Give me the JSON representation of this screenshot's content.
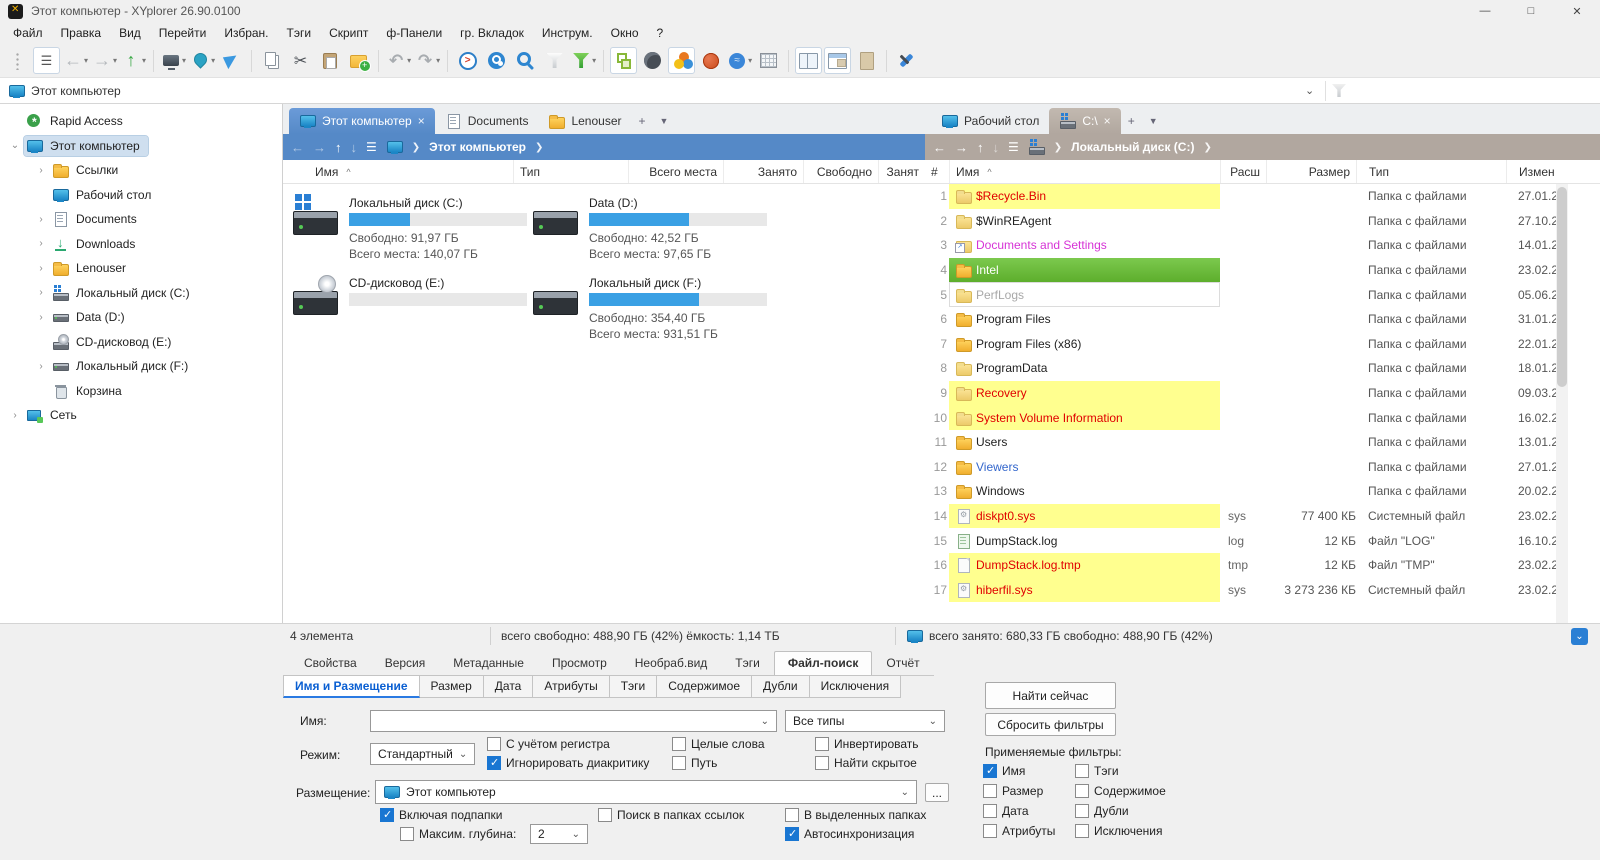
{
  "window": {
    "title": "Этот компьютер - XYplorer 26.90.0100"
  },
  "menubar": [
    "Файл",
    "Правка",
    "Вид",
    "Перейти",
    "Избран.",
    "Тэги",
    "Скрипт",
    "ф-Панели",
    "гр. Вкладок",
    "Инструм.",
    "Окно",
    "?"
  ],
  "toolbar": [
    {
      "name": "toolbar-grip",
      "icon": "grip"
    },
    {
      "name": "menu-toggle-button",
      "icon": "burger",
      "cls": "pressed"
    },
    {
      "name": "back-button",
      "icon": "back",
      "caret": "▾"
    },
    {
      "name": "forward-button",
      "icon": "fwd",
      "caret": "▾"
    },
    {
      "name": "up-button",
      "icon": "up",
      "caret": "▾"
    },
    {
      "cls": "sep"
    },
    {
      "name": "show-desktop-button",
      "icon": "monitor",
      "caret": "▾"
    },
    {
      "name": "location-pin-button",
      "icon": "pin",
      "caret": "▾"
    },
    {
      "name": "goto-button",
      "icon": "nav"
    },
    {
      "cls": "sep"
    },
    {
      "name": "copy-button",
      "icon": "copy"
    },
    {
      "name": "cut-button",
      "icon": "cut"
    },
    {
      "name": "paste-button",
      "icon": "paste"
    },
    {
      "name": "new-folder-button",
      "icon": "newfolder"
    },
    {
      "cls": "sep"
    },
    {
      "name": "undo-button",
      "icon": "undo",
      "caret": "▾"
    },
    {
      "name": "redo-button",
      "icon": "redo",
      "caret": "▾"
    },
    {
      "cls": "sep"
    },
    {
      "name": "live-filter-button",
      "icon": "livefilter"
    },
    {
      "name": "quick-search-button",
      "icon": "searchcircle"
    },
    {
      "name": "search-button",
      "icon": "magnifier"
    },
    {
      "name": "filter-off-button",
      "icon": "funnelgray"
    },
    {
      "name": "filter-on-button",
      "icon": "funnelgreen",
      "caret": "▾"
    },
    {
      "cls": "sep"
    },
    {
      "name": "tree-toggle-button",
      "icon": "treetoggle",
      "cls": "pressed"
    },
    {
      "name": "dark-mode-button",
      "icon": "moon"
    },
    {
      "name": "color-filters-button",
      "icon": "colors",
      "cls": "pressed"
    },
    {
      "name": "tags-button",
      "icon": "ball"
    },
    {
      "name": "scripts-button",
      "icon": "badge",
      "caret": "▾"
    },
    {
      "name": "report-button",
      "icon": "reportgrid"
    },
    {
      "cls": "sep"
    },
    {
      "name": "dual-pane-button",
      "icon": "dualpane",
      "cls": "pressed"
    },
    {
      "name": "panel-layout-button",
      "icon": "layoutpane",
      "cls": "pressed"
    },
    {
      "name": "preview-button",
      "icon": "paper"
    },
    {
      "cls": "sep"
    },
    {
      "name": "tools-button",
      "icon": "wrench"
    }
  ],
  "addressbar": {
    "value": "Этот компьютер"
  },
  "tree": [
    {
      "name": "tree-item-rapid-access",
      "label": "Rapid Access",
      "icon": "rapid",
      "depth": 0,
      "arrow": ""
    },
    {
      "name": "tree-item-this-computer",
      "label": "Этот компьютер",
      "icon": "computer",
      "depth": 0,
      "arrow": "⌄",
      "cls": "selected"
    },
    {
      "name": "tree-item-links",
      "label": "Ссылки",
      "icon": "folder",
      "depth": 1,
      "arrow": "›"
    },
    {
      "name": "tree-item-desktop",
      "label": "Рабочий стол",
      "icon": "desktop",
      "depth": 1,
      "arrow": ""
    },
    {
      "name": "tree-item-documents",
      "label": "Documents",
      "icon": "documents",
      "depth": 1,
      "arrow": "›"
    },
    {
      "name": "tree-item-downloads",
      "label": "Downloads",
      "icon": "downloads",
      "depth": 1,
      "arrow": "›"
    },
    {
      "name": "tree-item-lenouser",
      "label": "Lenouser",
      "icon": "folder",
      "depth": 1,
      "arrow": "›"
    },
    {
      "name": "tree-item-drive-c",
      "label": "Локальный диск (C:)",
      "icon": "drivewin",
      "depth": 1,
      "arrow": "›"
    },
    {
      "name": "tree-item-drive-d",
      "label": "Data (D:)",
      "icon": "drive",
      "depth": 1,
      "arrow": "›"
    },
    {
      "name": "tree-item-cd-e",
      "label": "CD-дисковод (E:)",
      "icon": "cd",
      "depth": 1,
      "arrow": ""
    },
    {
      "name": "tree-item-drive-f",
      "label": "Локальный диск (F:)",
      "icon": "drive",
      "depth": 1,
      "arrow": "›"
    },
    {
      "name": "tree-item-recycle",
      "label": "Корзина",
      "icon": "recycle",
      "depth": 1,
      "arrow": ""
    },
    {
      "name": "tree-item-network",
      "label": "Сеть",
      "icon": "network",
      "depth": 0,
      "arrow": "›"
    }
  ],
  "pane1": {
    "tabs": [
      {
        "name": "tab-this-computer",
        "label": "Этот компьютер",
        "icon": "computer",
        "cls": "active1",
        "close": "×"
      },
      {
        "name": "tab-documents",
        "label": "Documents",
        "icon": "documents"
      },
      {
        "name": "tab-lenouser",
        "label": "Lenouser",
        "icon": "folder"
      }
    ],
    "newtab": "+",
    "tabmenu": "▼",
    "crumb": {
      "path": "Этот компьютер"
    },
    "columns": [
      "Имя",
      "Тип",
      "Всего места",
      "Занято",
      "Свободно",
      "Занят"
    ],
    "sort": "^",
    "drives": [
      {
        "name": "Локальный диск (C:)",
        "icon": "hddwin",
        "pct": 34,
        "free": "Свободно: 91,97 ГБ",
        "total": "Всего места: 140,07 ГБ"
      },
      {
        "name": "Data (D:)",
        "icon": "hdd",
        "pct": 56,
        "free": "Свободно: 42,52 ГБ",
        "total": "Всего места: 97,65 ГБ"
      },
      {
        "name": "CD-дисковод (E:)",
        "icon": "cdrom",
        "pct": 0,
        "free": "",
        "total": ""
      },
      {
        "name": "Локальный диск (F:)",
        "icon": "hdd",
        "pct": 62,
        "free": "Свободно: 354,40 ГБ",
        "total": "Всего места: 931,51 ГБ"
      }
    ]
  },
  "pane2": {
    "tabs": [
      {
        "name": "tab-desktop",
        "label": "Рабочий стол",
        "icon": "desktop"
      },
      {
        "name": "tab-drive-c",
        "label": "C:\\",
        "icon": "drivewin",
        "cls": "active2",
        "close": "×"
      }
    ],
    "newtab": "+",
    "tabmenu": "▼",
    "crumb": {
      "path": "Локальный диск (C:)"
    },
    "columns": [
      "#",
      "Имя",
      "Расш",
      "Размер",
      "Тип",
      "Измен"
    ],
    "sort": "^",
    "rows": [
      {
        "n": "1",
        "name": "$Recycle.Bin",
        "icon": "folderpale",
        "cls": "hl-yellow",
        "ext": "",
        "size": "",
        "type": "Папка с файлами",
        "date": "27.01.2"
      },
      {
        "n": "2",
        "name": "$WinREAgent",
        "icon": "folderpale",
        "ext": "",
        "size": "",
        "type": "Папка с файлами",
        "date": "27.10.2"
      },
      {
        "n": "3",
        "name": "Documents and Settings",
        "icon": "folderlink",
        "cls": "txt-magenta",
        "ext": "",
        "size": "",
        "type": "Папка с файлами",
        "date": "14.01.2"
      },
      {
        "n": "4",
        "name": "Intel",
        "icon": "folder",
        "cls": "sel-green",
        "ext": "",
        "size": "",
        "type": "Папка с файлами",
        "date": "23.02.2"
      },
      {
        "n": "5",
        "name": "PerfLogs",
        "icon": "folderpale",
        "cls": "ghost",
        "ext": "",
        "size": "",
        "type": "Папка с файлами",
        "date": "05.06.2"
      },
      {
        "n": "6",
        "name": "Program Files",
        "icon": "folder",
        "ext": "",
        "size": "",
        "type": "Папка с файлами",
        "date": "31.01.2"
      },
      {
        "n": "7",
        "name": "Program Files (x86)",
        "icon": "folder",
        "ext": "",
        "size": "",
        "type": "Папка с файлами",
        "date": "22.01.2"
      },
      {
        "n": "8",
        "name": "ProgramData",
        "icon": "folderpale",
        "ext": "",
        "size": "",
        "type": "Папка с файлами",
        "date": "18.01.2"
      },
      {
        "n": "9",
        "name": "Recovery",
        "icon": "folderpale",
        "cls": "hl-yellow",
        "ext": "",
        "size": "",
        "type": "Папка с файлами",
        "date": "09.03.2"
      },
      {
        "n": "10",
        "name": "System Volume Information",
        "icon": "folderpale",
        "cls": "hl-yellow",
        "ext": "",
        "size": "",
        "type": "Папка с файлами",
        "date": "16.02.2"
      },
      {
        "n": "11",
        "name": "Users",
        "icon": "folder",
        "ext": "",
        "size": "",
        "type": "Папка с файлами",
        "date": "13.01.2"
      },
      {
        "n": "12",
        "name": "Viewers",
        "icon": "folder",
        "cls": "txt-blue",
        "ext": "",
        "size": "",
        "type": "Папка с файлами",
        "date": "27.01.2"
      },
      {
        "n": "13",
        "name": "Windows",
        "icon": "folder",
        "ext": "",
        "size": "",
        "type": "Папка с файлами",
        "date": "20.02.2"
      },
      {
        "n": "14",
        "name": "diskpt0.sys",
        "icon": "sysfile",
        "cls": "hl-yellow",
        "ext": "sys",
        "size": "77 400 КБ",
        "type": "Системный файл",
        "date": "23.02.2"
      },
      {
        "n": "15",
        "name": "DumpStack.log",
        "icon": "logfile",
        "ext": "log",
        "size": "12 КБ",
        "type": "Файл \"LOG\"",
        "date": "16.10.2"
      },
      {
        "n": "16",
        "name": "DumpStack.log.tmp",
        "icon": "file",
        "cls": "hl-yellow",
        "ext": "tmp",
        "size": "12 КБ",
        "type": "Файл \"TMP\"",
        "date": "23.02.2"
      },
      {
        "n": "17",
        "name": "hiberfil.sys",
        "icon": "sysfile",
        "cls": "hl-yellow",
        "ext": "sys",
        "size": "3 273 236 КБ",
        "type": "Системный файл",
        "date": "23.02.2"
      }
    ]
  },
  "statusbar": {
    "left": "4 элемента",
    "center": "всего  свободно: 488,90 ГБ (42%)   ёмкость: 1,14 ТБ",
    "right": "всего  занято: 680,33 ГБ  свободно: 488,90 ГБ (42%)",
    "badge_glyph": "⌄"
  },
  "bottom": {
    "tabs": [
      {
        "label": "Свойства"
      },
      {
        "label": "Версия"
      },
      {
        "label": "Метаданные"
      },
      {
        "label": "Просмотр"
      },
      {
        "label": "Необраб.вид"
      },
      {
        "label": "Тэги"
      },
      {
        "label": "Файл-поиск",
        "cls": "active"
      },
      {
        "label": "Отчёт"
      }
    ],
    "subtabs": [
      {
        "label": "Имя и Размещение",
        "cls": "active"
      },
      {
        "label": "Размер"
      },
      {
        "label": "Дата"
      },
      {
        "label": "Атрибуты"
      },
      {
        "label": "Тэги"
      },
      {
        "label": "Содержимое"
      },
      {
        "label": "Дубли"
      },
      {
        "label": "Исключения"
      }
    ],
    "form": {
      "name_label": "Имя:",
      "name_value": "",
      "types_value": "Все типы",
      "mode_label": "Режим:",
      "mode_value": "Стандартный",
      "checks_mode": [
        {
          "label": "С учётом регистра",
          "checked": false
        },
        {
          "label": "Игнорировать диакритику",
          "checked": true
        },
        {
          "label": "Целые слова",
          "checked": false
        },
        {
          "label": "Путь",
          "checked": false
        },
        {
          "label": "Инвертировать",
          "checked": false
        },
        {
          "label": "Найти скрытое",
          "checked": false
        }
      ],
      "location_label": "Размещение:",
      "location_value": "Этот компьютер",
      "more_button": "...",
      "checks_loc": [
        {
          "label": "Включая подпапки",
          "checked": true
        },
        {
          "label": "Поиск в папках ссылок",
          "checked": false
        },
        {
          "label": "В выделенных папках",
          "checked": false
        },
        {
          "label": "Максим. глубина:",
          "checked": false
        },
        {
          "label": "Автосинхронизация",
          "checked": true
        }
      ],
      "depth_value": "2"
    },
    "actions": {
      "find": "Найти сейчас",
      "reset": "Сбросить фильтры",
      "filters_label": "Применяемые фильтры:"
    },
    "filters": [
      {
        "label": "Имя",
        "checked": true
      },
      {
        "label": "Тэги",
        "checked": false
      },
      {
        "label": "Размер",
        "checked": false
      },
      {
        "label": "Содержимое",
        "checked": false
      },
      {
        "label": "Дата",
        "checked": false
      },
      {
        "label": "Дубли",
        "checked": false
      },
      {
        "label": "Атрибуты",
        "checked": false
      },
      {
        "label": "Исключения",
        "checked": false
      }
    ]
  }
}
